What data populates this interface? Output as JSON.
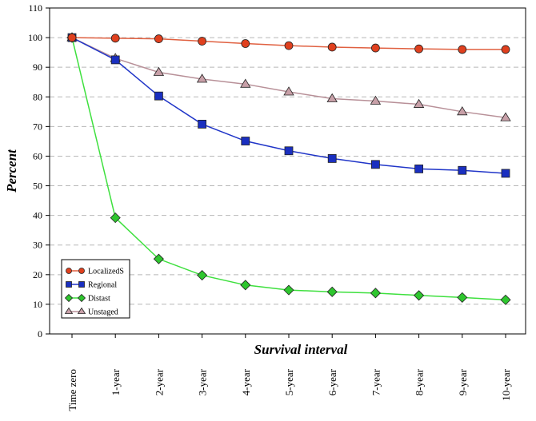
{
  "chart_data": {
    "type": "line",
    "title": "",
    "xlabel": "Survival interval",
    "ylabel": "Percent",
    "ylim": [
      0,
      110
    ],
    "yticks": [
      0,
      10,
      20,
      30,
      40,
      50,
      60,
      70,
      80,
      90,
      100,
      110
    ],
    "grid": true,
    "legend_position": "bottom-left",
    "categories": [
      "Time zero",
      "1-year",
      "2-year",
      "3-year",
      "4-year",
      "5-year",
      "6-year",
      "7-year",
      "8-year",
      "9-year",
      "10-year"
    ],
    "series": [
      {
        "name": "LocalizedS",
        "color": "#e0401e",
        "line_color": "#e06040",
        "marker": "circle",
        "values": [
          100,
          99.8,
          99.6,
          98.8,
          98.0,
          97.3,
          96.8,
          96.5,
          96.2,
          96.0,
          96.0
        ]
      },
      {
        "name": "Regional",
        "color": "#1a2fc0",
        "line_color": "#2035c8",
        "marker": "square",
        "values": [
          100,
          92.5,
          80.3,
          70.8,
          65.1,
          61.8,
          59.2,
          57.2,
          55.7,
          55.2,
          54.2
        ]
      },
      {
        "name": "Distast",
        "color": "#2ec62e",
        "line_color": "#3ee03e",
        "marker": "diamond",
        "values": [
          100,
          39.2,
          25.3,
          19.8,
          16.5,
          14.8,
          14.2,
          13.8,
          13.0,
          12.3,
          11.5
        ]
      },
      {
        "name": "Unstaged",
        "color": "#c8a0a8",
        "line_color": "#b89098",
        "marker": "triangle",
        "values": [
          100,
          93.0,
          88.3,
          86.0,
          84.3,
          81.7,
          79.4,
          78.6,
          77.5,
          75.0,
          73.0
        ]
      }
    ]
  }
}
